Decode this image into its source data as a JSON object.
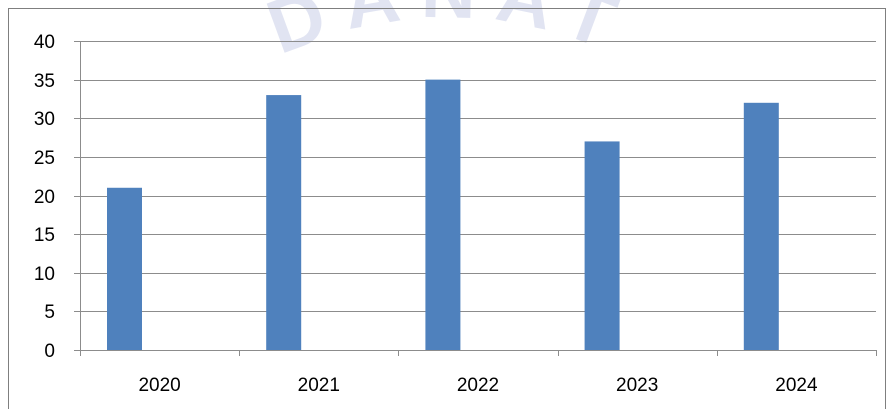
{
  "chart_data": {
    "type": "bar",
    "title": "",
    "xlabel": "",
    "ylabel": "",
    "categories": [
      "2020",
      "2021",
      "2022",
      "2023",
      "2024"
    ],
    "series": [
      {
        "values": [
          21,
          33,
          35,
          27,
          32
        ],
        "color": "#4f81bd"
      }
    ],
    "ylim": [
      0,
      40
    ],
    "yticks": [
      "0",
      "5",
      "10",
      "15",
      "20",
      "25",
      "30",
      "35",
      "40"
    ],
    "grid": true,
    "legend": "none"
  },
  "watermark": {
    "text": "DANAT",
    "color": "#dcdff0"
  },
  "colors": {
    "grid": "#8c8c8c",
    "axis": "#8c8c8c",
    "frame": "#7f7f7f",
    "text": "#000000"
  }
}
